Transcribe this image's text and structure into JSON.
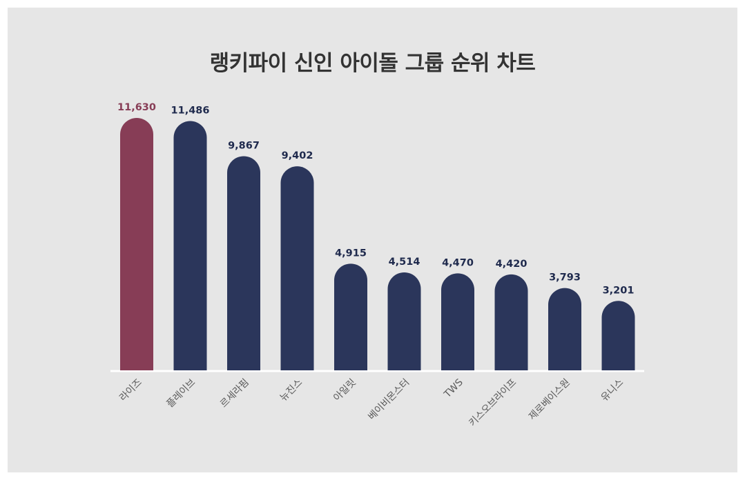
{
  "chart_data": {
    "type": "bar",
    "title": "랭키파이 신인 아이돌 그룹 순위 차트",
    "categories": [
      "라이즈",
      "플레이브",
      "르세라핌",
      "뉴진스",
      "아일릿",
      "베이비몬스터",
      "TWS",
      "키스오브라이프",
      "제로베이스원",
      "유니스"
    ],
    "values": [
      11630,
      11486,
      9867,
      9402,
      4915,
      4514,
      4470,
      4420,
      3793,
      3201
    ],
    "value_labels": [
      "11,630",
      "11,486",
      "9,867",
      "9,402",
      "4,915",
      "4,514",
      "4,470",
      "4,420",
      "3,793",
      "3,201"
    ],
    "highlight_index": 0,
    "ylim": [
      0,
      11630
    ],
    "grid": false,
    "legend": "none",
    "colors": {
      "highlight": "#873d56",
      "bar": "#2b365b",
      "value_text": "#1f2a4d",
      "highlight_text": "#873d56",
      "baseline": "#ffffff",
      "background": "#e6e6e6"
    }
  }
}
